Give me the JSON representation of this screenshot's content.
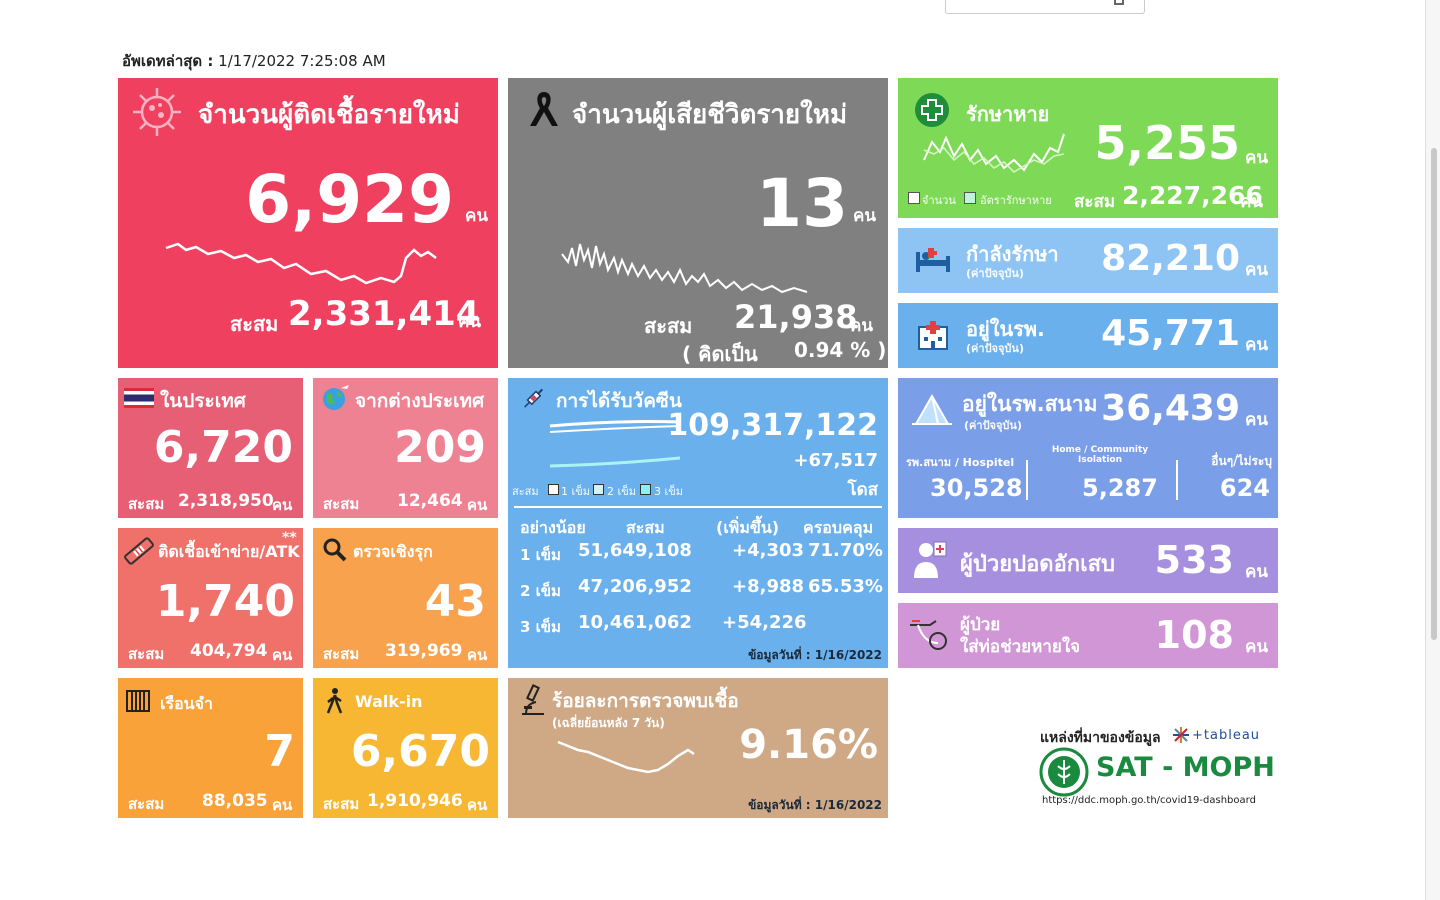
{
  "updated": {
    "label": "อัพเดทล่าสุด :",
    "value": "1/17/2022 7:25:08 AM"
  },
  "new_cases": {
    "title": "จำนวนผู้ติดเชื้อรายใหม่",
    "value": "6,929",
    "unit": "คน",
    "cum_label": "สะสม",
    "cum": "2,331,414",
    "cum_unit": "คน",
    "color": "#ef4060"
  },
  "new_deaths": {
    "title": "จำนวนผู้เสียชีวิตรายใหม่",
    "value": "13",
    "unit": "คน",
    "cum_label": "สะสม",
    "cum": "21,938",
    "cum_unit": "คน",
    "pct_prefix": "( คิดเป็น",
    "pct": "0.94 % )",
    "color": "#808080"
  },
  "recovered": {
    "title": "รักษาหาย",
    "value": "5,255",
    "unit": "คน",
    "legend1": "จำนวน",
    "legend2": "อัตรารักษาหาย",
    "cum_label": "สะสม",
    "cum": "2,227,266",
    "cum_unit": "คน",
    "color": "#7ed957"
  },
  "treating": {
    "title": "กำลังรักษา",
    "sub": "(ค่าปัจจุบัน)",
    "value": "82,210",
    "unit": "คน",
    "color": "#8ec4f4"
  },
  "hospital": {
    "title": "อยู่ในรพ.",
    "sub": "(ค่าปัจจุบัน)",
    "value": "45,771",
    "unit": "คน",
    "color": "#6ab0ec"
  },
  "domestic": {
    "title": "ในประเทศ",
    "value": "6,720",
    "cum_label": "สะสม",
    "cum": "2,318,950",
    "cum_unit": "คน",
    "color": "#e65f74"
  },
  "imported": {
    "title": "จากต่างประเทศ",
    "value": "209",
    "cum_label": "สะสม",
    "cum": "12,464",
    "cum_unit": "คน",
    "color": "#ee8293"
  },
  "vaccine": {
    "title": "การได้รับวัคซีน",
    "total": "109,317,122",
    "delta": "+67,517",
    "unit": "โดส",
    "legend_label": "สะสม",
    "legend1": "1 เข็ม",
    "legend2": "2 เข็ม",
    "legend3": "3 เข็ม",
    "headers": [
      "อย่างน้อย",
      "สะสม",
      "(เพิ่มขึ้น)",
      "ครอบคลุม"
    ],
    "rows": [
      {
        "dose": "1 เข็ม",
        "cum": "51,649,108",
        "inc": "+4,303",
        "cov": "71.70%"
      },
      {
        "dose": "2 เข็ม",
        "cum": "47,206,952",
        "inc": "+8,988",
        "cov": "65.53%"
      },
      {
        "dose": "3 เข็ม",
        "cum": "10,461,062",
        "inc": "+54,226",
        "cov": ""
      }
    ],
    "date": "ข้อมูลวันที่ : 1/16/2022",
    "color": "#6ab0ec"
  },
  "field_hosp": {
    "title": "อยู่ในรพ.สนาม",
    "sub": "(ค่าปัจจุบัน)",
    "value": "36,439",
    "unit": "คน",
    "col1_label": "รพ.สนาม / Hospitel",
    "col1": "30,528",
    "col2_label": "Home / Community Isolation",
    "col2": "5,287",
    "col3_label": "อื่นๆ/ไม่ระบุ",
    "col3": "624",
    "color": "#7b9ee8"
  },
  "atk": {
    "title": "ติดเชื้อเข้าข่าย/ATK",
    "mark": "**",
    "value": "1,740",
    "cum_label": "สะสม",
    "cum": "404,794",
    "cum_unit": "คน",
    "color": "#f0706a"
  },
  "active_search": {
    "title": "ตรวจเชิงรุก",
    "value": "43",
    "cum_label": "สะสม",
    "cum": "319,969",
    "cum_unit": "คน",
    "color": "#f9a24e"
  },
  "pneumonia": {
    "title": "ผู้ป่วยปอดอักเสบ",
    "value": "533",
    "unit": "คน",
    "color": "#a78fe0"
  },
  "ventilator": {
    "title1": "ผู้ป่วย",
    "title2": "ใส่ท่อช่วยหายใจ",
    "value": "108",
    "unit": "คน",
    "color": "#d196d6"
  },
  "prison": {
    "title": "เรือนจำ",
    "value": "7",
    "cum_label": "สะสม",
    "cum": "88,035",
    "cum_unit": "คน",
    "color": "#f9a23a"
  },
  "walkin": {
    "title": "Walk-in",
    "value": "6,670",
    "cum_label": "สะสม",
    "cum": "1,910,946",
    "cum_unit": "คน",
    "color": "#f7b733"
  },
  "positivity": {
    "title": "ร้อยละการตรวจพบเชื้อ",
    "sub": "(เฉลี่ยย้อนหลัง 7 วัน)",
    "value": "9.16%",
    "date": "ข้อมูลวันที่ : 1/16/2022",
    "color": "#cfa886"
  },
  "source": {
    "label": "แหล่งที่มาของข้อมูล",
    "tableau": "+tableau",
    "brand": "SAT - MOPH",
    "url": "https://ddc.moph.go.th/covid19-dashboard",
    "brand_color": "#1a8a3e"
  }
}
